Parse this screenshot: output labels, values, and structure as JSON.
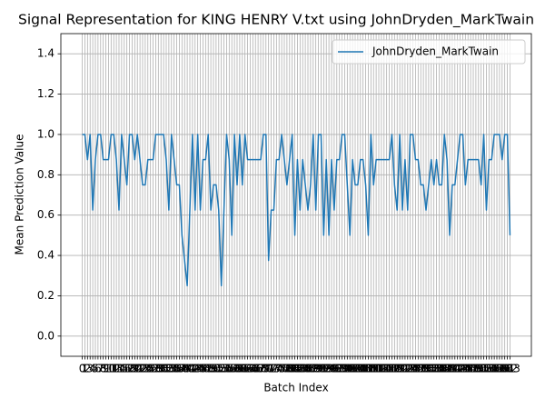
{
  "chart_data": {
    "type": "line",
    "title": "Signal Representation for KING HENRY V.txt using JohnDryden_MarkTwain",
    "x_label": "Batch Index",
    "y_label": "Mean Prediction Value",
    "x": [
      0,
      1,
      2,
      3,
      4,
      5,
      6,
      7,
      8,
      9,
      10,
      11,
      12,
      13,
      14,
      15,
      16,
      17,
      18,
      19,
      20,
      21,
      22,
      23,
      24,
      25,
      26,
      27,
      28,
      29,
      30,
      31,
      32,
      33,
      34,
      35,
      36,
      37,
      38,
      39,
      40,
      41,
      42,
      43,
      44,
      45,
      46,
      47,
      48,
      49,
      50,
      51,
      52,
      53,
      54,
      55,
      56,
      57,
      58,
      59,
      60,
      61,
      62,
      63,
      64,
      65,
      66,
      67,
      68,
      69,
      70,
      71,
      72,
      73,
      74,
      75,
      76,
      77,
      78,
      79,
      80,
      81,
      82,
      83,
      84,
      85,
      86,
      87,
      88,
      89,
      90,
      91,
      92,
      93,
      94,
      95,
      96,
      97,
      98,
      99,
      100,
      101,
      102,
      103,
      104,
      105,
      106,
      107,
      108,
      109,
      110,
      111,
      112,
      113,
      114,
      115,
      116,
      117,
      118,
      119,
      120,
      121,
      122,
      123,
      124,
      125,
      126,
      127,
      128,
      129,
      130,
      131,
      132,
      133,
      134,
      135,
      136,
      137,
      138,
      139,
      140,
      141,
      142,
      143,
      144,
      145,
      146,
      147,
      148,
      149,
      150,
      151,
      152,
      153,
      154,
      155,
      156,
      157,
      158,
      159,
      160,
      161,
      162,
      163
    ],
    "series": [
      {
        "name": "JohnDryden_MarkTwain",
        "color": "#1f77b4",
        "values": [
          1,
          1,
          0.875,
          1,
          0.625,
          0.875,
          1,
          1,
          0.875,
          0.875,
          0.875,
          1,
          1,
          0.875,
          0.625,
          1,
          0.875,
          0.75,
          1,
          1,
          0.875,
          1,
          0.875,
          0.75,
          0.75,
          0.875,
          0.875,
          0.875,
          1,
          1,
          1,
          1,
          0.875,
          0.625,
          1,
          0.875,
          0.75,
          0.75,
          0.5,
          0.375,
          0.25,
          0.625,
          1,
          0.625,
          1,
          0.625,
          0.875,
          0.875,
          1,
          0.625,
          0.75,
          0.75,
          0.625,
          0.25,
          0.625,
          1,
          0.875,
          0.5,
          1,
          0.75,
          1,
          0.75,
          1,
          0.875,
          0.875,
          0.875,
          0.875,
          0.875,
          0.875,
          1,
          1,
          0.375,
          0.625,
          0.625,
          0.875,
          0.875,
          1,
          0.875,
          0.75,
          0.875,
          1,
          0.5,
          0.875,
          0.625,
          0.875,
          0.75,
          0.625,
          0.75,
          1,
          0.625,
          1,
          1,
          0.5,
          0.875,
          0.5,
          0.875,
          0.625,
          0.875,
          0.875,
          1,
          1,
          0.75,
          0.5,
          0.875,
          0.75,
          0.75,
          0.875,
          0.875,
          0.75,
          0.5,
          1,
          0.75,
          0.875,
          0.875,
          0.875,
          0.875,
          0.875,
          0.875,
          1,
          0.75,
          0.625,
          1,
          0.625,
          0.875,
          0.625,
          1,
          1,
          0.875,
          0.875,
          0.75,
          0.75,
          0.625,
          0.75,
          0.875,
          0.75,
          0.875,
          0.75,
          0.75,
          1,
          0.875,
          0.5,
          0.75,
          0.75,
          0.875,
          1,
          1,
          0.75,
          0.875,
          0.875,
          0.875,
          0.875,
          0.875,
          0.75,
          1,
          0.625,
          0.875,
          0.875,
          1,
          1,
          1,
          0.875,
          1,
          1,
          0.5
        ]
      }
    ],
    "xlim": [
      -8.15,
      171.15
    ],
    "xticks": [
      0,
      1,
      2,
      3,
      4,
      5,
      6,
      7,
      8,
      9,
      10,
      11,
      12,
      13,
      14,
      15,
      16,
      17,
      18,
      19,
      20,
      21,
      22,
      23,
      24,
      25,
      26,
      27,
      28,
      29,
      30,
      31,
      32,
      33,
      34,
      35,
      36,
      37,
      38,
      39,
      40,
      41,
      42,
      43,
      44,
      45,
      46,
      47,
      48,
      49,
      50,
      51,
      52,
      53,
      54,
      55,
      56,
      57,
      58,
      59,
      60,
      61,
      62,
      63,
      64,
      65,
      66,
      67,
      68,
      69,
      70,
      71,
      72,
      73,
      74,
      75,
      76,
      77,
      78,
      79,
      80,
      81,
      82,
      83,
      84,
      85,
      86,
      87,
      88,
      89,
      90,
      91,
      92,
      93,
      94,
      95,
      96,
      97,
      98,
      99,
      100,
      101,
      102,
      103,
      104,
      105,
      106,
      107,
      108,
      109,
      110,
      111,
      112,
      113,
      114,
      115,
      116,
      117,
      118,
      119,
      120,
      121,
      122,
      123,
      124,
      125,
      126,
      127,
      128,
      129,
      130,
      131,
      132,
      133,
      134,
      135,
      136,
      137,
      138,
      139,
      140,
      141,
      142,
      143,
      144,
      145,
      146,
      147,
      148,
      149,
      150,
      151,
      152,
      153,
      154,
      155,
      156,
      157,
      158,
      159,
      160,
      161,
      162,
      163
    ],
    "ylim": [
      -0.1,
      1.5
    ],
    "yticks": [
      {
        "value": 0,
        "label": "0.0"
      },
      {
        "value": 0.2,
        "label": "0.2"
      },
      {
        "value": 0.4,
        "label": "0.4"
      },
      {
        "value": 0.6,
        "label": "0.6"
      },
      {
        "value": 0.8,
        "label": "0.8"
      },
      {
        "value": 1,
        "label": "1.0"
      },
      {
        "value": 1.2,
        "label": "1.2"
      },
      {
        "value": 1.4,
        "label": "1.4"
      }
    ],
    "grid": true,
    "legend": "upper right"
  }
}
